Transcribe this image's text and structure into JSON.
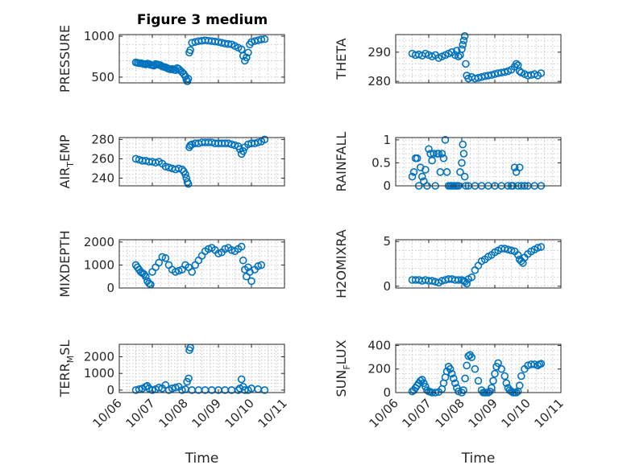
{
  "figure": {
    "title": "Figure 3 medium",
    "marker_color": "#0072bd"
  },
  "chart_data": [
    {
      "type": "scatter",
      "title": "Figure 3 medium",
      "ylabel": "PRESSURE",
      "xlabel": "",
      "ylim": [
        430,
        1020
      ],
      "yticks": [
        500,
        1000
      ],
      "show_x_ticks": false,
      "x": [
        0.5,
        0.55,
        0.6,
        0.65,
        0.7,
        0.75,
        0.8,
        0.85,
        0.9,
        0.95,
        1.0,
        1.05,
        1.1,
        1.15,
        1.2,
        1.25,
        1.3,
        1.35,
        1.4,
        1.45,
        1.5,
        1.55,
        1.6,
        1.65,
        1.7,
        1.75,
        1.8,
        1.85,
        1.9,
        1.95,
        2.0,
        2.03,
        2.06,
        2.09,
        2.12,
        2.15,
        2.2,
        2.3,
        2.4,
        2.5,
        2.6,
        2.7,
        2.8,
        2.9,
        3.0,
        3.1,
        3.2,
        3.3,
        3.4,
        3.5,
        3.6,
        3.7,
        3.75,
        3.8,
        3.85,
        3.9,
        3.95,
        4.0,
        4.1,
        4.2,
        4.3,
        4.4
      ],
      "y": [
        680,
        675,
        670,
        670,
        665,
        660,
        655,
        665,
        660,
        650,
        645,
        640,
        660,
        655,
        650,
        645,
        630,
        625,
        620,
        610,
        600,
        595,
        600,
        590,
        585,
        610,
        600,
        580,
        560,
        540,
        510,
        470,
        450,
        480,
        800,
        830,
        920,
        930,
        940,
        945,
        950,
        945,
        940,
        935,
        930,
        920,
        910,
        905,
        900,
        880,
        860,
        840,
        760,
        700,
        740,
        800,
        900,
        930,
        940,
        950,
        960,
        965
      ]
    },
    {
      "type": "scatter",
      "ylabel": "THETA",
      "xlabel": "",
      "ylim": [
        279.5,
        296
      ],
      "yticks": [
        280,
        290
      ],
      "show_x_ticks": false,
      "x": [
        0.5,
        0.6,
        0.7,
        0.8,
        0.9,
        1.0,
        1.1,
        1.2,
        1.3,
        1.4,
        1.5,
        1.6,
        1.7,
        1.8,
        1.85,
        1.9,
        1.95,
        2.0,
        2.03,
        2.06,
        2.09,
        2.12,
        2.15,
        2.2,
        2.3,
        2.4,
        2.5,
        2.6,
        2.7,
        2.8,
        2.9,
        3.0,
        3.1,
        3.2,
        3.3,
        3.4,
        3.5,
        3.6,
        3.65,
        3.7,
        3.75,
        3.8,
        3.9,
        4.0,
        4.1,
        4.2,
        4.3,
        4.4
      ],
      "y": [
        289.5,
        289.0,
        289.2,
        288.8,
        289.5,
        289.0,
        288.5,
        289.0,
        288.0,
        288.5,
        289.0,
        289.5,
        290.0,
        289.0,
        290.5,
        288.5,
        289.0,
        291.0,
        292.5,
        294.0,
        295.5,
        286.0,
        282.0,
        281.0,
        281.5,
        281.0,
        281.2,
        281.5,
        281.8,
        282.0,
        282.2,
        282.5,
        282.8,
        283.0,
        283.2,
        283.5,
        284.0,
        285.0,
        286.0,
        285.5,
        283.5,
        283.0,
        282.5,
        282.0,
        282.2,
        282.5,
        282.0,
        282.8
      ]
    },
    {
      "type": "scatter",
      "ylabel": "AIR_TEMP",
      "ylabel_main": "AIR",
      "ylabel_sub": "T",
      "ylabel_rest": "EMP",
      "xlabel": "",
      "ylim": [
        232,
        282
      ],
      "yticks": [
        240,
        260,
        280
      ],
      "show_x_ticks": false,
      "x": [
        0.5,
        0.6,
        0.7,
        0.8,
        0.9,
        1.0,
        1.1,
        1.2,
        1.3,
        1.4,
        1.5,
        1.6,
        1.7,
        1.8,
        1.9,
        1.95,
        2.0,
        2.03,
        2.06,
        2.09,
        2.12,
        2.15,
        2.2,
        2.3,
        2.4,
        2.5,
        2.6,
        2.7,
        2.8,
        2.9,
        3.0,
        3.1,
        3.2,
        3.3,
        3.4,
        3.5,
        3.6,
        3.65,
        3.7,
        3.75,
        3.8,
        3.9,
        4.0,
        4.1,
        4.2,
        4.3,
        4.4
      ],
      "y": [
        260,
        259,
        258,
        258,
        257,
        257,
        256,
        257,
        255,
        252,
        251,
        250,
        249,
        250,
        249,
        247,
        244,
        240,
        236,
        234,
        272,
        274,
        275,
        276,
        276,
        277,
        277,
        277,
        277,
        276,
        276,
        276,
        276,
        276,
        275,
        274,
        273,
        270,
        265,
        268,
        272,
        275,
        276,
        276,
        277,
        278,
        280
      ]
    },
    {
      "type": "scatter",
      "ylabel": "RAINFALL",
      "xlabel": "",
      "ylim": [
        0,
        1.05
      ],
      "yticks": [
        0,
        0.5,
        1
      ],
      "ytick_labels": [
        "0",
        "0.5",
        "1"
      ],
      "show_x_ticks": false,
      "x": [
        0.5,
        0.55,
        0.6,
        0.65,
        0.7,
        0.75,
        0.8,
        0.85,
        0.9,
        0.95,
        1.0,
        1.05,
        1.1,
        1.15,
        1.2,
        1.25,
        1.3,
        1.35,
        1.4,
        1.45,
        1.5,
        1.55,
        1.6,
        1.65,
        1.7,
        1.75,
        1.8,
        1.85,
        1.9,
        1.95,
        2.0,
        2.03,
        2.06,
        2.09,
        2.12,
        2.2,
        2.4,
        2.6,
        2.8,
        3.0,
        3.2,
        3.4,
        3.5,
        3.55,
        3.6,
        3.65,
        3.7,
        3.75,
        3.8,
        3.9,
        4.0,
        4.2,
        4.4
      ],
      "y": [
        0.2,
        0.3,
        0.6,
        0.6,
        0.0,
        0.4,
        0.2,
        0.1,
        0.35,
        0.0,
        0.8,
        0.7,
        0.55,
        0.7,
        0.0,
        0.7,
        0.7,
        0.3,
        0.7,
        0.6,
        1.0,
        0.3,
        0.0,
        0.0,
        0.0,
        0.0,
        0.0,
        0.0,
        0.0,
        0.3,
        0.5,
        0.9,
        0.7,
        0.2,
        0.0,
        0.0,
        0.0,
        0.0,
        0.0,
        0.0,
        0.0,
        0.0,
        0.0,
        0.0,
        0.4,
        0.3,
        0.0,
        0.4,
        0.0,
        0.0,
        0.0,
        0.0,
        0.0
      ]
    },
    {
      "type": "scatter",
      "ylabel": "MIXDEPTH",
      "xlabel": "",
      "ylim": [
        0,
        2100
      ],
      "yticks": [
        0,
        1000,
        2000
      ],
      "show_x_ticks": false,
      "x": [
        0.5,
        0.55,
        0.6,
        0.65,
        0.7,
        0.75,
        0.8,
        0.85,
        0.9,
        0.95,
        1.0,
        1.1,
        1.2,
        1.3,
        1.4,
        1.5,
        1.6,
        1.7,
        1.8,
        1.9,
        2.0,
        2.1,
        2.2,
        2.3,
        2.4,
        2.5,
        2.6,
        2.7,
        2.8,
        2.9,
        3.0,
        3.1,
        3.2,
        3.3,
        3.4,
        3.5,
        3.6,
        3.7,
        3.75,
        3.8,
        3.85,
        3.9,
        3.95,
        4.0,
        4.1,
        4.2,
        4.3
      ],
      "y": [
        1000,
        900,
        800,
        700,
        650,
        600,
        500,
        300,
        200,
        150,
        700,
        900,
        1100,
        1350,
        1300,
        1000,
        800,
        700,
        750,
        800,
        1000,
        900,
        700,
        1000,
        1200,
        1400,
        1600,
        1700,
        1750,
        1650,
        1500,
        1550,
        1700,
        1750,
        1650,
        1600,
        1700,
        1800,
        1200,
        800,
        500,
        900,
        700,
        300,
        800,
        950,
        1000
      ]
    },
    {
      "type": "scatter",
      "ylabel": "H2OMIXRA",
      "xlabel": "",
      "ylim": [
        -0.2,
        5.2
      ],
      "yticks": [
        0,
        5
      ],
      "show_x_ticks": false,
      "x": [
        0.5,
        0.6,
        0.7,
        0.8,
        0.9,
        1.0,
        1.1,
        1.2,
        1.3,
        1.4,
        1.5,
        1.6,
        1.7,
        1.8,
        1.9,
        2.0,
        2.05,
        2.1,
        2.15,
        2.2,
        2.3,
        2.4,
        2.5,
        2.6,
        2.7,
        2.8,
        2.9,
        3.0,
        3.1,
        3.2,
        3.3,
        3.4,
        3.5,
        3.6,
        3.7,
        3.75,
        3.8,
        3.85,
        3.9,
        4.0,
        4.1,
        4.2,
        4.3,
        4.4
      ],
      "y": [
        0.7,
        0.7,
        0.7,
        0.6,
        0.7,
        0.6,
        0.6,
        0.5,
        0.4,
        0.6,
        0.7,
        0.8,
        0.8,
        0.7,
        0.7,
        0.7,
        0.6,
        0.5,
        0.3,
        0.8,
        1.0,
        1.8,
        2.3,
        2.8,
        3.0,
        3.3,
        3.5,
        3.8,
        4.0,
        4.2,
        4.2,
        4.1,
        4.0,
        3.9,
        3.5,
        3.0,
        2.8,
        2.6,
        3.2,
        3.6,
        3.9,
        4.1,
        4.3,
        4.4
      ]
    },
    {
      "type": "scatter",
      "ylabel": "TERR_MSL",
      "ylabel_main": "TERR",
      "ylabel_sub": "M",
      "ylabel_rest": "SL",
      "xlabel": "Time",
      "ylim": [
        -150,
        2750
      ],
      "yticks": [
        0,
        1000,
        2000
      ],
      "show_x_ticks": true,
      "x": [
        0.5,
        0.6,
        0.7,
        0.8,
        0.85,
        0.9,
        1.0,
        1.1,
        1.2,
        1.3,
        1.4,
        1.5,
        1.6,
        1.7,
        1.8,
        1.9,
        2.0,
        2.05,
        2.1,
        2.12,
        2.15,
        2.2,
        2.4,
        2.6,
        2.8,
        3.0,
        3.2,
        3.4,
        3.6,
        3.65,
        3.7,
        3.75,
        3.8,
        3.9,
        4.0,
        4.2,
        4.4
      ],
      "y": [
        0,
        50,
        100,
        200,
        250,
        100,
        0,
        50,
        150,
        100,
        300,
        0,
        100,
        150,
        200,
        0,
        50,
        500,
        700,
        2400,
        2550,
        0,
        0,
        0,
        0,
        0,
        0,
        0,
        0,
        100,
        650,
        200,
        0,
        0,
        100,
        50,
        0
      ]
    },
    {
      "type": "scatter",
      "ylabel": "SUN_FLUX",
      "ylabel_main": "SUN",
      "ylabel_sub": "F",
      "ylabel_rest": "LUX",
      "xlabel": "Time",
      "ylim": [
        0,
        410
      ],
      "yticks": [
        0,
        200,
        400
      ],
      "show_x_ticks": true,
      "x": [
        0.5,
        0.55,
        0.6,
        0.65,
        0.7,
        0.75,
        0.8,
        0.85,
        0.9,
        0.95,
        1.0,
        1.05,
        1.1,
        1.2,
        1.3,
        1.4,
        1.45,
        1.5,
        1.55,
        1.6,
        1.65,
        1.7,
        1.75,
        1.8,
        1.85,
        1.9,
        2.0,
        2.05,
        2.1,
        2.15,
        2.2,
        2.25,
        2.3,
        2.4,
        2.5,
        2.6,
        2.65,
        2.7,
        2.75,
        2.8,
        2.85,
        2.9,
        2.95,
        3.0,
        3.05,
        3.1,
        3.2,
        3.3,
        3.35,
        3.4,
        3.45,
        3.5,
        3.55,
        3.6,
        3.65,
        3.7,
        3.75,
        3.8,
        3.9,
        4.0,
        4.1,
        4.2,
        4.3,
        4.35,
        4.4
      ],
      "y": [
        10,
        20,
        40,
        60,
        80,
        100,
        110,
        80,
        50,
        20,
        10,
        5,
        0,
        0,
        5,
        30,
        80,
        130,
        180,
        220,
        200,
        160,
        120,
        80,
        40,
        10,
        0,
        20,
        120,
        230,
        310,
        320,
        300,
        200,
        100,
        20,
        0,
        0,
        0,
        0,
        10,
        40,
        100,
        160,
        220,
        250,
        200,
        140,
        80,
        40,
        20,
        10,
        0,
        0,
        0,
        10,
        60,
        140,
        200,
        230,
        240,
        240,
        230,
        240,
        245
      ]
    }
  ],
  "x_axis": {
    "xlim": [
      0,
      5
    ],
    "ticks": [
      0,
      1,
      2,
      3,
      4,
      5
    ],
    "tick_labels": [
      "10/06",
      "10/07",
      "10/08",
      "10/09",
      "10/10",
      "10/11"
    ]
  }
}
